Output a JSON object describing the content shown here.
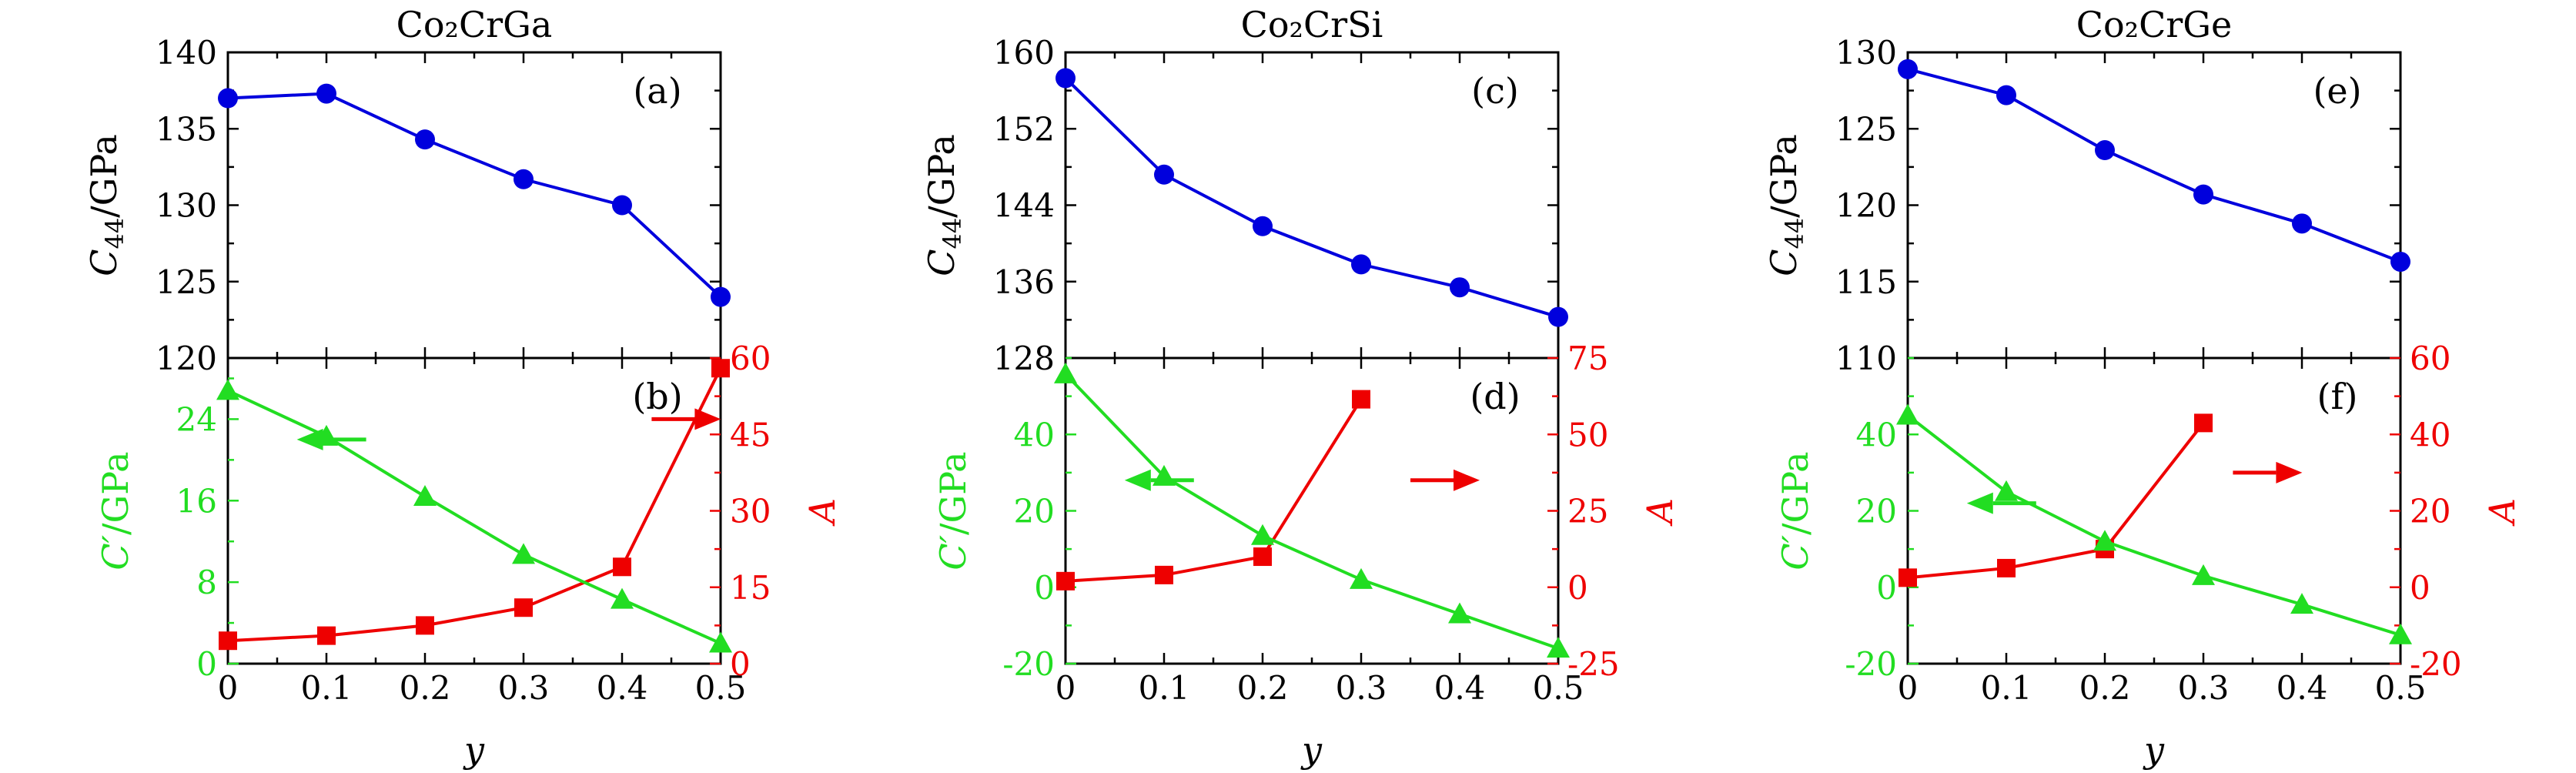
{
  "colors": {
    "c44": "#0000dd",
    "cprime": "#22dd22",
    "anis": "#ee0000",
    "axis": "#000000"
  },
  "chart_data": [
    {
      "type": "line",
      "title": "Co₂CrGa",
      "top": {
        "panel_label": "(a)",
        "ylabel": "C44/GPa",
        "ylim": [
          120,
          140
        ],
        "yticks": [
          120,
          125,
          130,
          135,
          140
        ],
        "x": [
          0,
          0.1,
          0.2,
          0.3,
          0.4,
          0.5
        ],
        "values": [
          137.0,
          137.3,
          134.3,
          131.7,
          130.0,
          124.0
        ]
      },
      "bottom": {
        "panel_label": "(b)",
        "xlabel": "y",
        "xlim": [
          0,
          0.5
        ],
        "xticks": [
          "0",
          "0.1",
          "0.2",
          "0.3",
          "0.4",
          "0.5"
        ],
        "left": {
          "ylabel": "C′/GPa",
          "ylim": [
            0,
            30
          ],
          "yticks": [
            0,
            8,
            16,
            24
          ],
          "x": [
            0,
            0.1,
            0.2,
            0.3,
            0.4,
            0.5
          ],
          "values": [
            26.8,
            22.3,
            16.4,
            10.7,
            6.3,
            2.0
          ]
        },
        "right": {
          "ylabel": "A",
          "ylim": [
            0,
            60
          ],
          "yticks": [
            0,
            15,
            30,
            45,
            60
          ],
          "x": [
            0,
            0.1,
            0.2,
            0.3,
            0.4,
            0.5
          ],
          "values": [
            4.5,
            5.5,
            7.5,
            11.0,
            19.0,
            58.0
          ]
        },
        "left_arrow_at": [
          0.07,
          22.0
        ],
        "right_arrow_at": [
          0.43,
          24.0
        ]
      }
    },
    {
      "type": "line",
      "title": "Co₂CrSi",
      "top": {
        "panel_label": "(c)",
        "ylabel": "C44/GPa",
        "ylim": [
          128,
          160
        ],
        "yticks": [
          128,
          136,
          144,
          152,
          160
        ],
        "x": [
          0,
          0.1,
          0.2,
          0.3,
          0.4,
          0.5
        ],
        "values": [
          157.3,
          147.2,
          141.8,
          137.8,
          135.4,
          132.3
        ]
      },
      "bottom": {
        "panel_label": "(d)",
        "xlabel": "y",
        "xlim": [
          0,
          0.5
        ],
        "xticks": [
          "0",
          "0.1",
          "0.2",
          "0.3",
          "0.4",
          "0.5"
        ],
        "left": {
          "ylabel": "C′/GPa",
          "ylim": [
            -20,
            60
          ],
          "yticks": [
            -20,
            0,
            20,
            40
          ],
          "x": [
            0,
            0.1,
            0.2,
            0.3,
            0.4,
            0.5
          ],
          "values": [
            55.8,
            29.0,
            13.5,
            2.0,
            -7.0,
            -16.0
          ]
        },
        "right": {
          "ylabel": "A",
          "ylim": [
            -25,
            75
          ],
          "yticks": [
            -25,
            0,
            25,
            50,
            75
          ],
          "x": [
            0,
            0.1,
            0.2,
            0.3
          ],
          "values": [
            2.0,
            4.0,
            10.0,
            61.5
          ]
        },
        "left_arrow_at": [
          0.06,
          28.0
        ],
        "right_arrow_at": [
          0.35,
          28.0
        ]
      }
    },
    {
      "type": "line",
      "title": "Co₂CrGe",
      "top": {
        "panel_label": "(e)",
        "ylabel": "C44/GPa",
        "ylim": [
          110,
          130
        ],
        "yticks": [
          110,
          115,
          120,
          125,
          130
        ],
        "x": [
          0,
          0.1,
          0.2,
          0.3,
          0.4,
          0.5
        ],
        "values": [
          128.9,
          127.2,
          123.6,
          120.7,
          118.8,
          116.3
        ]
      },
      "bottom": {
        "panel_label": "(f)",
        "xlabel": "y",
        "xlim": [
          0,
          0.5
        ],
        "xticks": [
          "0",
          "0.1",
          "0.2",
          "0.3",
          "0.4",
          "0.5"
        ],
        "left": {
          "ylabel": "C′/GPa",
          "ylim": [
            -20,
            60
          ],
          "yticks": [
            -20,
            0,
            20,
            40
          ],
          "x": [
            0,
            0.1,
            0.2,
            0.3,
            0.4,
            0.5
          ],
          "values": [
            45.0,
            25.0,
            12.0,
            3.0,
            -4.5,
            -12.5
          ]
        },
        "right": {
          "ylabel": "A",
          "ylim": [
            -20,
            60
          ],
          "yticks": [
            -20,
            0,
            20,
            40,
            60
          ],
          "x": [
            0,
            0.1,
            0.2,
            0.3
          ],
          "values": [
            2.5,
            5.0,
            10.0,
            43.0
          ]
        },
        "left_arrow_at": [
          0.06,
          22.0
        ],
        "right_arrow_at": [
          0.33,
          30.0
        ]
      }
    }
  ]
}
